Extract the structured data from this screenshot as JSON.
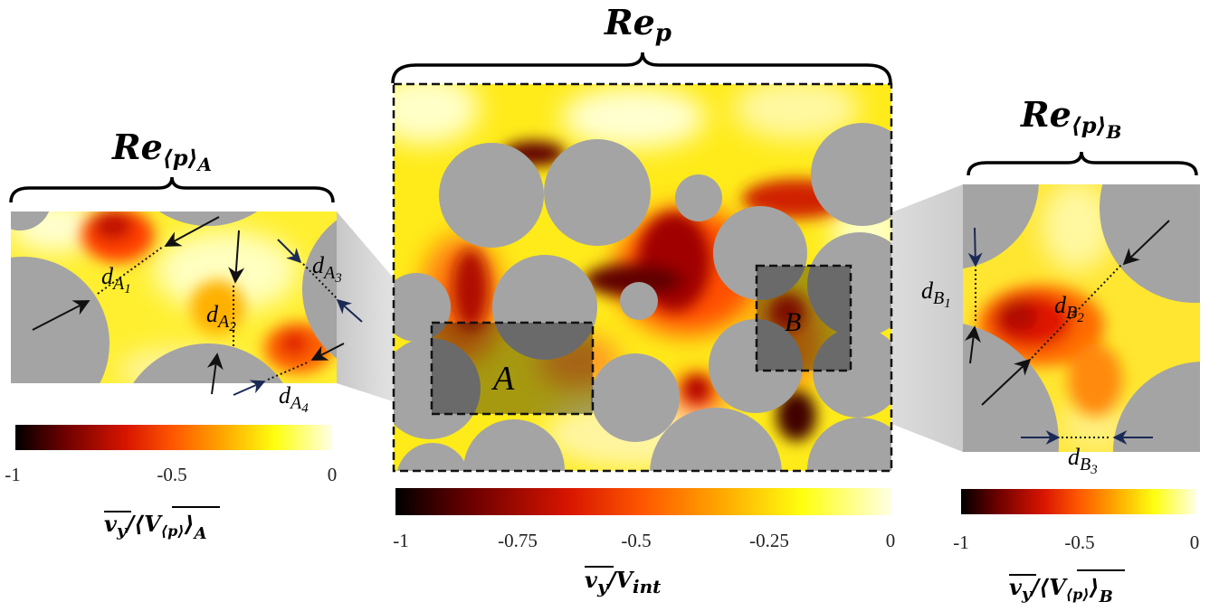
{
  "colors": {
    "obstacle": "#a4a4a4",
    "cmap": [
      "#000000",
      "#6a0000",
      "#d11a00",
      "#ff5a00",
      "#ffa600",
      "#ffff00",
      "#ffffe0"
    ]
  },
  "center": {
    "title": "Re",
    "title_sub": "p",
    "region_a_label": "A",
    "region_b_label": "B",
    "colorbar": {
      "ticks": [
        "-1",
        "-0.75",
        "-0.5",
        "-0.25",
        "0"
      ],
      "label_main": "v",
      "label_main_sub": "y",
      "label_den": "/V",
      "label_den_sub": "int"
    }
  },
  "left": {
    "title": "Re",
    "title_sub": "⟨p⟩",
    "title_subsub": "A",
    "distances": [
      {
        "d": "d",
        "sub": "A",
        "num": "1"
      },
      {
        "d": "d",
        "sub": "A",
        "num": "2"
      },
      {
        "d": "d",
        "sub": "A",
        "num": "3"
      },
      {
        "d": "d",
        "sub": "A",
        "num": "4"
      }
    ],
    "colorbar": {
      "ticks": [
        "-1",
        "-0.5",
        "0"
      ],
      "label_num": "v",
      "label_num_sub": "y",
      "label_den": "/⟨V",
      "label_den_sub": "⟨p⟩",
      "label_den_close": "⟩",
      "label_den_sub2": "A"
    }
  },
  "right": {
    "title": "Re",
    "title_sub": "⟨p⟩",
    "title_subsub": "B",
    "distances": [
      {
        "d": "d",
        "sub": "B",
        "num": "1"
      },
      {
        "d": "d",
        "sub": "B",
        "num": "2"
      },
      {
        "d": "d",
        "sub": "B",
        "num": "3"
      }
    ],
    "colorbar": {
      "ticks": [
        "-1",
        "-0.5",
        "0"
      ],
      "label_num": "v",
      "label_num_sub": "y",
      "label_den": "/⟨V",
      "label_den_sub": "⟨p⟩",
      "label_den_close": "⟩",
      "label_den_sub2": "B"
    }
  }
}
